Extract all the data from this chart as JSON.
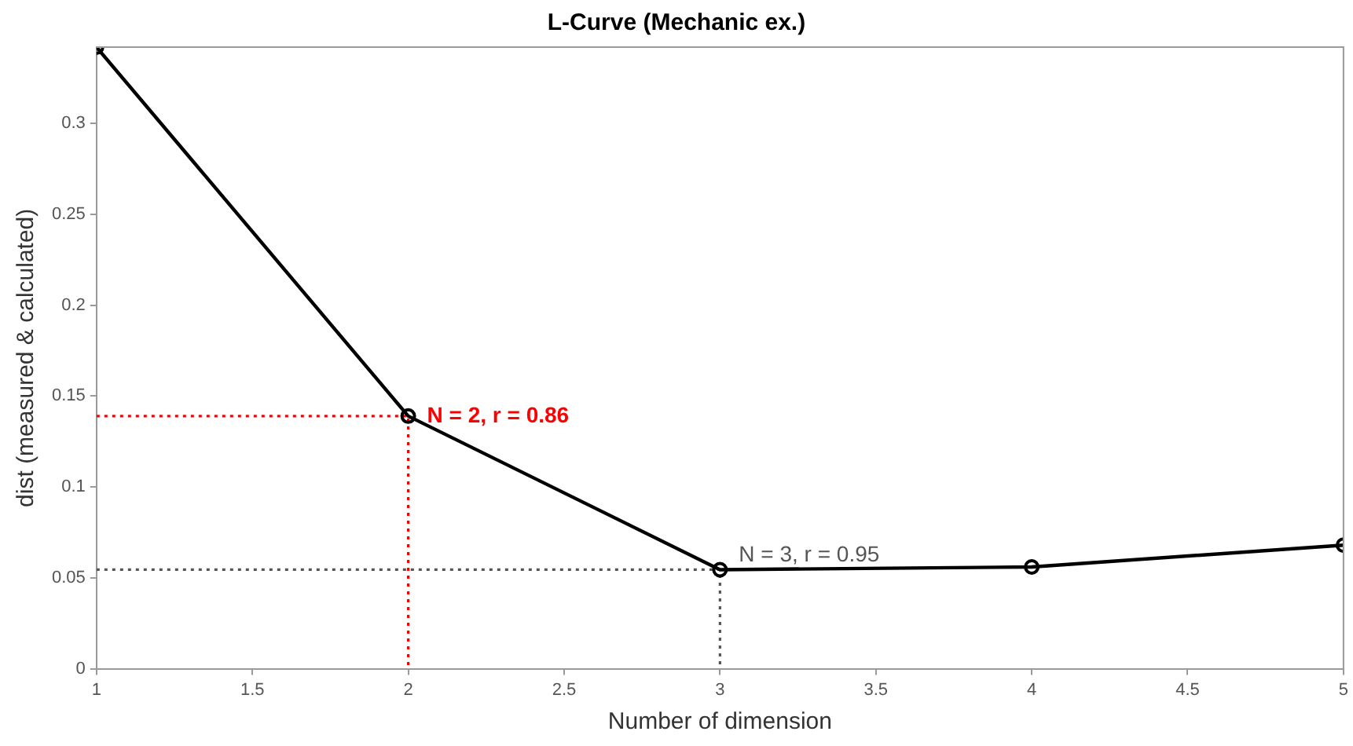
{
  "chart_data": {
    "type": "line",
    "title": "L-Curve (Mechanic ex.)",
    "xlabel": "Number of dimension",
    "ylabel": "dist (measured & calculated)",
    "x": [
      1,
      2,
      3,
      4,
      5
    ],
    "series": [
      {
        "color": "#000000",
        "values": [
          0.342,
          0.139,
          0.0545,
          0.056,
          0.068
        ],
        "marker": "circle",
        "line_style": "solid"
      },
      {
        "color": "#ff0000",
        "x": [
          1,
          2,
          2
        ],
        "values": [
          0.139,
          0.139,
          0
        ],
        "marker": "none",
        "line_style": "dotted"
      },
      {
        "color": "#555555",
        "x": [
          1,
          3,
          3
        ],
        "values": [
          0.0545,
          0.0545,
          0
        ],
        "marker": "none",
        "line_style": "dotted"
      }
    ],
    "annotations": [
      {
        "text": "N = 2, r = 0.86",
        "x": 2,
        "y": 0.139
      },
      {
        "text": "N = 3, r = 0.95",
        "x": 3,
        "y": 0.0545
      }
    ],
    "xlim": [
      1,
      5
    ],
    "xticks": [
      1,
      1.5,
      2,
      2.5,
      3,
      3.5,
      4,
      4.5,
      5
    ],
    "ylim": [
      0,
      0.342
    ],
    "yticks": [
      0,
      0.05,
      0.1,
      0.15,
      0.2,
      0.25,
      0.3
    ],
    "grid": false,
    "legend": false
  }
}
